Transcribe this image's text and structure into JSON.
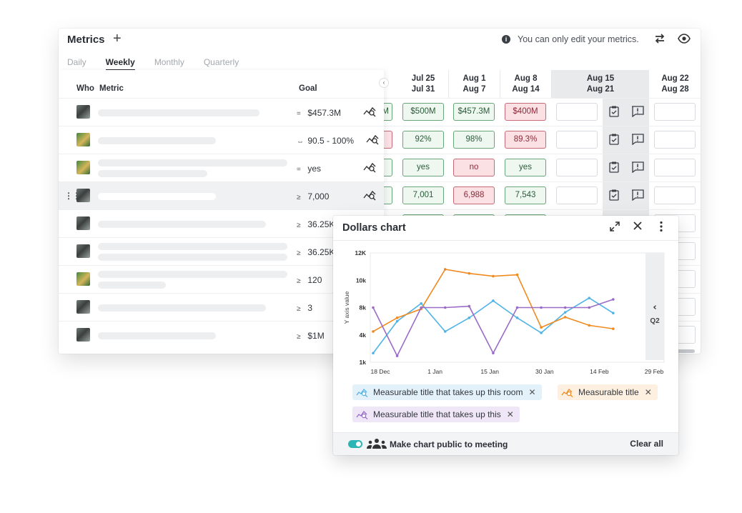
{
  "window": {
    "title": "Metrics",
    "add_icon": "plus-icon",
    "notice": "You can only edit your metrics.",
    "tabs": [
      {
        "label": "Daily",
        "active": false
      },
      {
        "label": "Weekly",
        "active": true
      },
      {
        "label": "Monthly",
        "active": false
      },
      {
        "label": "Quarterly",
        "active": false
      }
    ]
  },
  "table": {
    "headers": {
      "who": "Who",
      "metric": "Metric",
      "goal": "Goal"
    },
    "weeks": [
      {
        "start": "Jul 25",
        "end": "Jul 31"
      },
      {
        "start": "Aug 1",
        "end": "Aug 7"
      },
      {
        "start": "Aug 8",
        "end": "Aug 14"
      },
      {
        "start": "Aug 15",
        "end": "Aug 21",
        "current": true
      },
      {
        "start": "Aug 22",
        "end": "Aug 28"
      }
    ],
    "rows": [
      {
        "goal_op": "=",
        "goal": "$457.3M",
        "prev": "M",
        "prev_status": "good",
        "values": [
          "$500M",
          "$457.3M",
          "$400M"
        ],
        "status": [
          "good",
          "good",
          "bad"
        ]
      },
      {
        "goal_op": "⇔",
        "goal": "90.5 - 100%",
        "prev": "",
        "prev_status": "bad",
        "values": [
          "92%",
          "98%",
          "89.3%"
        ],
        "status": [
          "good",
          "good",
          "bad"
        ]
      },
      {
        "goal_op": "=",
        "goal": "yes",
        "prev": "",
        "prev_status": "good",
        "values": [
          "yes",
          "no",
          "yes"
        ],
        "status": [
          "good",
          "bad",
          "good"
        ]
      },
      {
        "goal_op": "≥",
        "goal": "7,000",
        "prev": "",
        "prev_status": "good",
        "values": [
          "7,001",
          "6,988",
          "7,543"
        ],
        "status": [
          "good",
          "bad",
          "good"
        ]
      },
      {
        "goal_op": "≥",
        "goal": "36.25K"
      },
      {
        "goal_op": "≥",
        "goal": "36.25K"
      },
      {
        "goal_op": "≥",
        "goal": "120"
      },
      {
        "goal_op": "≥",
        "goal": "3"
      },
      {
        "goal_op": "≥",
        "goal": "$1M"
      }
    ]
  },
  "popup": {
    "title": "Dollars chart",
    "side_label": "Q2",
    "footer_label": "Make chart public to meeting",
    "clear_all": "Clear all",
    "chips": [
      {
        "label": "Measurable title that takes up this room",
        "color": "#4fb3e6",
        "bg": "#e3f1fa"
      },
      {
        "label": "Measurable title",
        "color": "#f08a1f",
        "bg": "#fdf0e0"
      },
      {
        "label": "Measurable title that takes up this",
        "color": "#9a6bc7",
        "bg": "#efe6f7"
      }
    ]
  },
  "chart_data": {
    "type": "line",
    "ylabel": "Y axis value",
    "y_ticks": [
      "1k",
      "4k",
      "8k",
      "10k",
      "12K"
    ],
    "x_ticks": [
      "18 Dec",
      "1 Jan",
      "15 Jan",
      "30 Jan",
      "14 Feb",
      "29 Feb"
    ],
    "x": [
      0,
      1,
      2,
      3,
      4,
      5,
      6,
      7,
      8,
      9,
      10,
      11,
      12
    ],
    "series": [
      {
        "color": "#4fb3e6",
        "values": [
          2,
          6,
          8.3,
          4.5,
          6.5,
          8.5,
          6.5,
          4.3,
          7.3,
          8.7,
          7.2,
          null,
          null
        ]
      },
      {
        "color": "#f08a1f",
        "values": [
          4.5,
          6.5,
          7.8,
          10.8,
          10.5,
          10.3,
          10.4,
          5.1,
          6.6,
          5.4,
          4.9,
          null,
          null
        ]
      },
      {
        "color": "#9a6bc7",
        "values": [
          8,
          1.7,
          8,
          8,
          8.1,
          2,
          8,
          8,
          8,
          8,
          8.6,
          null,
          null
        ]
      }
    ]
  }
}
